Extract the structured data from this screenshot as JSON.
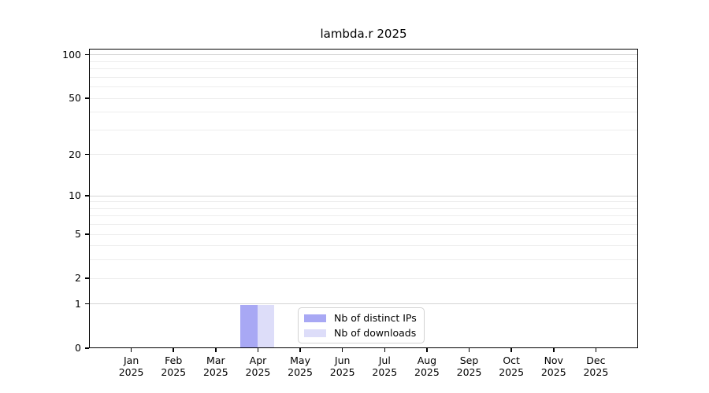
{
  "title": "lambda.r 2025",
  "chart_data": {
    "type": "bar",
    "title": "lambda.r 2025",
    "categories": [
      "Jan",
      "Feb",
      "Mar",
      "Apr",
      "May",
      "Jun",
      "Jul",
      "Aug",
      "Sep",
      "Oct",
      "Nov",
      "Dec"
    ],
    "x_tick_sublabel": "2025",
    "series": [
      {
        "name": "Nb of distinct IPs",
        "color": "#a8a8f4",
        "values": [
          0,
          0,
          0,
          1,
          0,
          0,
          0,
          0,
          0,
          0,
          0,
          0
        ]
      },
      {
        "name": "Nb of downloads",
        "color": "#ddddf9",
        "values": [
          0,
          0,
          0,
          1,
          0,
          0,
          0,
          0,
          0,
          0,
          0,
          0
        ]
      }
    ],
    "xlabel": "",
    "ylabel": "",
    "y_axis": {
      "scale": "log1p",
      "ylim": [
        0,
        110.5
      ],
      "tick_values": [
        0,
        1,
        2,
        5,
        10,
        20,
        50,
        100
      ],
      "grid_values": [
        1,
        2,
        3,
        4,
        5,
        6,
        7,
        8,
        9,
        10,
        20,
        30,
        40,
        50,
        60,
        70,
        80,
        90,
        100
      ],
      "emphasized_grid_values": [
        1,
        10,
        100
      ]
    },
    "grid": true,
    "legend": {
      "position": "bottom-center",
      "entries": [
        "Nb of distinct IPs",
        "Nb of downloads"
      ]
    },
    "colors": {
      "grid_minor": "#ededed",
      "grid_major": "#d4d4d4",
      "axis": "#000000",
      "bar_distinct_ips": "#a8a8f4",
      "bar_downloads": "#ddddf9"
    }
  }
}
